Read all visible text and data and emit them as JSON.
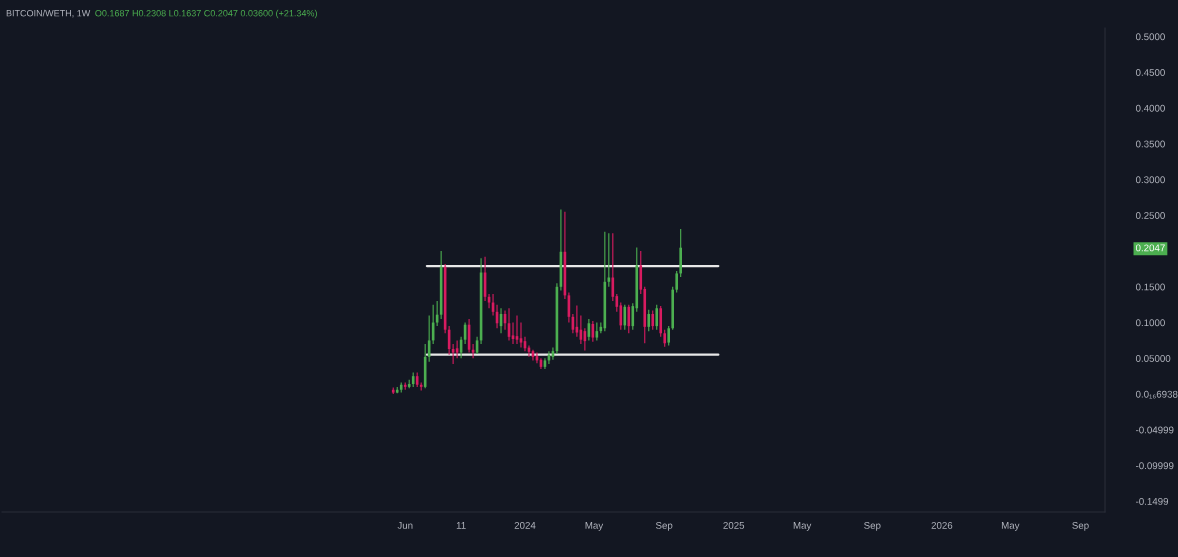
{
  "chart_data": {
    "type": "candlestick",
    "title": "BITCOIN/WETH, 1W",
    "subtitle": "O0.1687 H0.2308 L0.1637 C0.2047 0.03600 (+21.34%)",
    "x": [
      "2023-05-15",
      "2023-05-22",
      "2023-05-29",
      "2023-06-05",
      "2023-06-12",
      "2023-06-19",
      "2023-06-26",
      "2023-07-03",
      "2023-07-10",
      "2023-07-17",
      "2023-07-24",
      "2023-07-31",
      "2023-08-07",
      "2023-08-14",
      "2023-08-21",
      "2023-08-28",
      "2023-09-04",
      "2023-09-11",
      "2023-09-18",
      "2023-09-25",
      "2023-10-02",
      "2023-10-09",
      "2023-10-16",
      "2023-10-23",
      "2023-10-30",
      "2023-11-06",
      "2023-11-13",
      "2023-11-20",
      "2023-11-27",
      "2023-12-04",
      "2023-12-11",
      "2023-12-18",
      "2023-12-25",
      "2024-01-01",
      "2024-01-08",
      "2024-01-15",
      "2024-01-22",
      "2024-01-29",
      "2024-02-05",
      "2024-02-12",
      "2024-02-19",
      "2024-02-26",
      "2024-03-04",
      "2024-03-11",
      "2024-03-18",
      "2024-03-25",
      "2024-04-01",
      "2024-04-08",
      "2024-04-15",
      "2024-04-22",
      "2024-04-29",
      "2024-05-06",
      "2024-05-13",
      "2024-05-20",
      "2024-05-27",
      "2024-06-03",
      "2024-06-10",
      "2024-06-17",
      "2024-06-24",
      "2024-07-01",
      "2024-07-08",
      "2024-07-15",
      "2024-07-22",
      "2024-07-29",
      "2024-08-05",
      "2024-08-12",
      "2024-08-19",
      "2024-08-26",
      "2024-09-02",
      "2024-09-09",
      "2024-09-16",
      "2024-09-23",
      "2024-09-30"
    ],
    "ohlc": [
      [
        0.006,
        0.009,
        0.0,
        0.002
      ],
      [
        0.002,
        0.01,
        0.001,
        0.006
      ],
      [
        0.006,
        0.016,
        0.002,
        0.013
      ],
      [
        0.013,
        0.016,
        0.006,
        0.01
      ],
      [
        0.01,
        0.02,
        0.008,
        0.014
      ],
      [
        0.014,
        0.03,
        0.01,
        0.025
      ],
      [
        0.025,
        0.03,
        0.01,
        0.013
      ],
      [
        0.013,
        0.016,
        0.005,
        0.01
      ],
      [
        0.01,
        0.07,
        0.008,
        0.052
      ],
      [
        0.052,
        0.11,
        0.045,
        0.075
      ],
      [
        0.075,
        0.125,
        0.07,
        0.1
      ],
      [
        0.1,
        0.13,
        0.095,
        0.111
      ],
      [
        0.111,
        0.2,
        0.105,
        0.178
      ],
      [
        0.178,
        0.182,
        0.085,
        0.09
      ],
      [
        0.09,
        0.095,
        0.055,
        0.063
      ],
      [
        0.063,
        0.07,
        0.042,
        0.058
      ],
      [
        0.064,
        0.075,
        0.05,
        0.058
      ],
      [
        0.058,
        0.08,
        0.05,
        0.076
      ],
      [
        0.076,
        0.1,
        0.07,
        0.097
      ],
      [
        0.097,
        0.105,
        0.058,
        0.062
      ],
      [
        0.062,
        0.07,
        0.05,
        0.058
      ],
      [
        0.058,
        0.08,
        0.056,
        0.075
      ],
      [
        0.075,
        0.19,
        0.07,
        0.17
      ],
      [
        0.17,
        0.192,
        0.13,
        0.136
      ],
      [
        0.136,
        0.14,
        0.12,
        0.128
      ],
      [
        0.128,
        0.14,
        0.11,
        0.115
      ],
      [
        0.115,
        0.125,
        0.092,
        0.099
      ],
      [
        0.095,
        0.12,
        0.085,
        0.112
      ],
      [
        0.112,
        0.117,
        0.09,
        0.099
      ],
      [
        0.099,
        0.12,
        0.075,
        0.08
      ],
      [
        0.082,
        0.1,
        0.07,
        0.077
      ],
      [
        0.081,
        0.11,
        0.07,
        0.076
      ],
      [
        0.078,
        0.1,
        0.065,
        0.072
      ],
      [
        0.074,
        0.08,
        0.06,
        0.064
      ],
      [
        0.065,
        0.068,
        0.052,
        0.059
      ],
      [
        0.06,
        0.062,
        0.047,
        0.052
      ],
      [
        0.053,
        0.058,
        0.043,
        0.047
      ],
      [
        0.048,
        0.05,
        0.035,
        0.038
      ],
      [
        0.038,
        0.05,
        0.035,
        0.047
      ],
      [
        0.047,
        0.06,
        0.042,
        0.055
      ],
      [
        0.052,
        0.065,
        0.048,
        0.06
      ],
      [
        0.06,
        0.155,
        0.056,
        0.15
      ],
      [
        0.15,
        0.258,
        0.145,
        0.199
      ],
      [
        0.199,
        0.255,
        0.133,
        0.138
      ],
      [
        0.138,
        0.142,
        0.1,
        0.108
      ],
      [
        0.108,
        0.112,
        0.085,
        0.09
      ],
      [
        0.094,
        0.124,
        0.08,
        0.086
      ],
      [
        0.09,
        0.11,
        0.07,
        0.076
      ],
      [
        0.088,
        0.092,
        0.061,
        0.074
      ],
      [
        0.08,
        0.105,
        0.075,
        0.099
      ],
      [
        0.098,
        0.102,
        0.073,
        0.079
      ],
      [
        0.079,
        0.1,
        0.075,
        0.088
      ],
      [
        0.088,
        0.1,
        0.085,
        0.094
      ],
      [
        0.092,
        0.227,
        0.088,
        0.157
      ],
      [
        0.157,
        0.225,
        0.15,
        0.163
      ],
      [
        0.163,
        0.225,
        0.13,
        0.136
      ],
      [
        0.137,
        0.14,
        0.115,
        0.122
      ],
      [
        0.124,
        0.128,
        0.09,
        0.096
      ],
      [
        0.096,
        0.125,
        0.09,
        0.122
      ],
      [
        0.122,
        0.125,
        0.085,
        0.095
      ],
      [
        0.095,
        0.127,
        0.09,
        0.123
      ],
      [
        0.12,
        0.205,
        0.115,
        0.18
      ],
      [
        0.18,
        0.2,
        0.14,
        0.146
      ],
      [
        0.147,
        0.15,
        0.071,
        0.094
      ],
      [
        0.094,
        0.118,
        0.088,
        0.112
      ],
      [
        0.112,
        0.117,
        0.09,
        0.095
      ],
      [
        0.095,
        0.125,
        0.09,
        0.12
      ],
      [
        0.12,
        0.123,
        0.08,
        0.085
      ],
      [
        0.085,
        0.09,
        0.066,
        0.071
      ],
      [
        0.072,
        0.095,
        0.068,
        0.092
      ],
      [
        0.092,
        0.15,
        0.09,
        0.146
      ],
      [
        0.146,
        0.172,
        0.142,
        0.1687
      ],
      [
        0.1687,
        0.2308,
        0.1637,
        0.2047
      ]
    ],
    "colors": [
      "#d81b60",
      "#4caf50",
      "#4caf50",
      "#d81b60",
      "#4caf50",
      "#4caf50",
      "#d81b60",
      "#d81b60",
      "#4caf50",
      "#4caf50",
      "#4caf50",
      "#4caf50",
      "#4caf50",
      "#d81b60",
      "#d81b60",
      "#d81b60",
      "#d81b60",
      "#4caf50",
      "#4caf50",
      "#d81b60",
      "#d81b60",
      "#4caf50",
      "#4caf50",
      "#d81b60",
      "#d81b60",
      "#d81b60",
      "#d81b60",
      "#4caf50",
      "#d81b60",
      "#d81b60",
      "#d81b60",
      "#d81b60",
      "#d81b60",
      "#d81b60",
      "#d81b60",
      "#d81b60",
      "#d81b60",
      "#d81b60",
      "#4caf50",
      "#4caf50",
      "#4caf50",
      "#4caf50",
      "#4caf50",
      "#d81b60",
      "#d81b60",
      "#d81b60",
      "#d81b60",
      "#d81b60",
      "#d81b60",
      "#4caf50",
      "#d81b60",
      "#4caf50",
      "#4caf50",
      "#4caf50",
      "#4caf50",
      "#d81b60",
      "#d81b60",
      "#d81b60",
      "#4caf50",
      "#d81b60",
      "#4caf50",
      "#4caf50",
      "#d81b60",
      "#d81b60",
      "#4caf50",
      "#d81b60",
      "#4caf50",
      "#d81b60",
      "#d81b60",
      "#4caf50",
      "#4caf50",
      "#4caf50",
      "#4caf50"
    ],
    "series": [
      {
        "type": "line",
        "x": [
          "2023-07-13",
          "2024-12-05"
        ],
        "values": [
          0.179,
          0.179
        ],
        "color": "#e8e8e8"
      },
      {
        "type": "line",
        "x": [
          "2023-07-13",
          "2024-12-05"
        ],
        "values": [
          0.055,
          0.055
        ],
        "color": "#e8e8e8"
      }
    ],
    "xlim": [
      "2021-06-28",
      "2026-10-14"
    ],
    "xticks": [
      {
        "value": "2023-06-05",
        "label": "Jun"
      },
      {
        "value": "2023-09-11",
        "label": "11"
      },
      {
        "value": "2024-01-01",
        "label": "2024"
      },
      {
        "value": "2024-05-01",
        "label": "May"
      },
      {
        "value": "2024-09-01",
        "label": "Sep"
      },
      {
        "value": "2025-01-01",
        "label": "2025"
      },
      {
        "value": "2025-05-01",
        "label": "May"
      },
      {
        "value": "2025-09-01",
        "label": "Sep"
      },
      {
        "value": "2026-01-01",
        "label": "2026"
      },
      {
        "value": "2026-05-01",
        "label": "May"
      },
      {
        "value": "2026-09-01",
        "label": "Sep"
      }
    ],
    "ylim": [
      -0.165,
      0.512
    ],
    "yticks": [
      {
        "value": 0.5,
        "label": "0.5000"
      },
      {
        "value": 0.45,
        "label": "0.4500"
      },
      {
        "value": 0.4,
        "label": "0.4000"
      },
      {
        "value": 0.35,
        "label": "0.3500"
      },
      {
        "value": 0.3,
        "label": "0.3000"
      },
      {
        "value": 0.25,
        "label": "0.2500"
      },
      {
        "value": 0.2047,
        "label": "0.2047"
      },
      {
        "value": 0.15,
        "label": "0.1500"
      },
      {
        "value": 0.1,
        "label": "0.1000"
      },
      {
        "value": 0.05,
        "label": "0.05000"
      },
      {
        "value": 6.938e-17,
        "label": "0.0₁₆6938"
      },
      -0.04999,
      -0.09999,
      -0.1499
    ]
  }
}
